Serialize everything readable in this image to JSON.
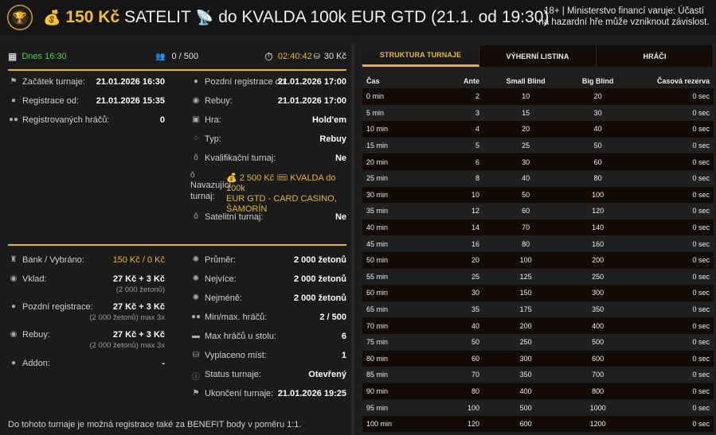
{
  "header": {
    "logo_icon": "trophy-chip-icon",
    "money_bag_icon": "money-bag-icon",
    "price": "150 Kč",
    "title_part1": "SATELIT",
    "satellite_icon": "satellite-dish-icon",
    "title_part2": "do KVALDA 100k EUR GTD (21.1. od 19:30)",
    "warning_line1": "18+ | Ministerstvo financí varuje: Účastí",
    "warning_line2": "na hazardní hře může vzniknout závislost."
  },
  "summary": {
    "date": "Dnes 16:30",
    "players": "0 / 500",
    "countdown": "02:40:42",
    "fee": "30 Kč"
  },
  "info_left": [
    {
      "icon": "flag-icon",
      "label": "Začátek turnaje:",
      "value": "21.01.2026 16:30"
    },
    {
      "icon": "user-icon",
      "label": "Registrace od:",
      "value": "21.01.2026 15:35"
    },
    {
      "icon": "users-icon",
      "label": "Registrovaných hráčů:",
      "value": "0"
    }
  ],
  "info_right": [
    {
      "icon": "user-icon",
      "label": "Pozdní registrace do:",
      "value": "21.01.2026 17:00"
    },
    {
      "icon": "money-icon",
      "label": "Rebuy:",
      "value": "21.01.2026 17:00"
    },
    {
      "icon": "cards-icon",
      "label": "Hra:",
      "value": "Hold'em"
    },
    {
      "icon": "grid-icon",
      "label": "Typ:",
      "value": "Rebuy"
    },
    {
      "icon": "medal-icon",
      "label": "Kvalifikační turnaj:",
      "value": "Ne"
    },
    {
      "icon": "medal-icon",
      "label_line1": "Navazující",
      "label_line2": "turnaj:",
      "link_line1": "💰 2 500 Kč 🎟 KVALDA do 100k",
      "link_line2": "EUR GTD - CARD CASINO,",
      "link_line3": "ŠAMORÍN"
    },
    {
      "icon": "medal-icon",
      "label": "Satelitní turnaj:",
      "value": "Ne"
    }
  ],
  "money_left": [
    {
      "icon": "money-bag-icon",
      "label": "Bank / Vybráno:",
      "value": "150 Kč / 0 Kč"
    },
    {
      "icon": "money-icon",
      "label": "Vklad:",
      "value": "27 Kč + 3 Kč",
      "sub": "(2 000 žetonů)"
    },
    {
      "icon": "dollar-icon",
      "label": "Pozdní registrace:",
      "value": "27 Kč + 3 Kč",
      "sub": "(2 000 žetonů) max 3x"
    },
    {
      "icon": "money-icon",
      "label": "Rebuy:",
      "value": "27 Kč + 3 Kč",
      "sub": "(2 000 žetonů) max 3x"
    },
    {
      "icon": "dollar-icon",
      "label": "Addon:",
      "value": "-"
    }
  ],
  "money_right": [
    {
      "icon": "chip-icon",
      "label": "Průměr:",
      "value": "2 000 žetonů"
    },
    {
      "icon": "chip-icon",
      "label": "Nejvíce:",
      "value": "2 000 žetonů"
    },
    {
      "icon": "chip-icon",
      "label": "Nejméně:",
      "value": "2 000 žetonů"
    },
    {
      "icon": "users-icon",
      "label": "Min/max. hráčů:",
      "value": "2 / 500"
    },
    {
      "icon": "table-icon",
      "label": "Max hráčů u stolu:",
      "value": "6"
    },
    {
      "icon": "payout-icon",
      "label": "Vyplaceno míst:",
      "value": "1"
    },
    {
      "icon": "info-icon",
      "label": "Status turnaje:",
      "value": "Otevřený"
    },
    {
      "icon": "checkered-flag-icon",
      "label": "Ukončení turnaje:",
      "value": "21.01.2026 19:25"
    }
  ],
  "footer_note": "Do tohoto turnaje je možná registrace také za BENEFIT body v poměru 1:1.",
  "tabs": [
    {
      "label": "STRUKTURA TURNAJE",
      "active": true
    },
    {
      "label": "VÝHERNÍ LISTINA",
      "active": false
    },
    {
      "label": "HRÁČI",
      "active": false
    }
  ],
  "table": {
    "headers": [
      "Čas",
      "Ante",
      "Small Blind",
      "Big Blind",
      "Časová rezerva"
    ],
    "rows": [
      [
        "0 min",
        "2",
        "10",
        "20",
        "0 sec"
      ],
      [
        "5 min",
        "3",
        "15",
        "30",
        "0 sec"
      ],
      [
        "10 min",
        "4",
        "20",
        "40",
        "0 sec"
      ],
      [
        "15 min",
        "5",
        "25",
        "50",
        "0 sec"
      ],
      [
        "20 min",
        "6",
        "30",
        "60",
        "0 sec"
      ],
      [
        "25 min",
        "8",
        "40",
        "80",
        "0 sec"
      ],
      [
        "30 min",
        "10",
        "50",
        "100",
        "0 sec"
      ],
      [
        "35 min",
        "12",
        "60",
        "120",
        "0 sec"
      ],
      [
        "40 min",
        "14",
        "70",
        "140",
        "0 sec"
      ],
      [
        "45 min",
        "16",
        "80",
        "160",
        "0 sec"
      ],
      [
        "50 min",
        "20",
        "100",
        "200",
        "0 sec"
      ],
      [
        "55 min",
        "25",
        "125",
        "250",
        "0 sec"
      ],
      [
        "60 min",
        "30",
        "150",
        "300",
        "0 sec"
      ],
      [
        "65 min",
        "35",
        "175",
        "350",
        "0 sec"
      ],
      [
        "70 min",
        "40",
        "200",
        "400",
        "0 sec"
      ],
      [
        "75 min",
        "50",
        "250",
        "500",
        "0 sec"
      ],
      [
        "80 min",
        "60",
        "300",
        "600",
        "0 sec"
      ],
      [
        "85 min",
        "70",
        "350",
        "700",
        "0 sec"
      ],
      [
        "90 min",
        "80",
        "400",
        "800",
        "0 sec"
      ],
      [
        "95 min",
        "100",
        "500",
        "1000",
        "0 sec"
      ],
      [
        "100 min",
        "120",
        "600",
        "1200",
        "0 sec"
      ]
    ]
  },
  "colors": {
    "accent_gold": "#e3b92b",
    "today_green": "#58c94e",
    "background": "#1c1c1c"
  }
}
